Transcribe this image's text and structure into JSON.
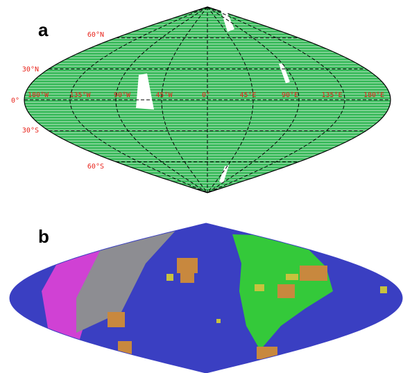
{
  "panels": [
    {
      "label": "a",
      "lat_labels": [
        "60°N",
        "30°N",
        "0°",
        "30°S",
        "60°S"
      ],
      "lon_labels": [
        "180°W",
        "135°W",
        "90°W",
        "45°W",
        "0°",
        "45°E",
        "90°E",
        "135°E",
        "180°E"
      ]
    },
    {
      "label": "b"
    }
  ]
}
